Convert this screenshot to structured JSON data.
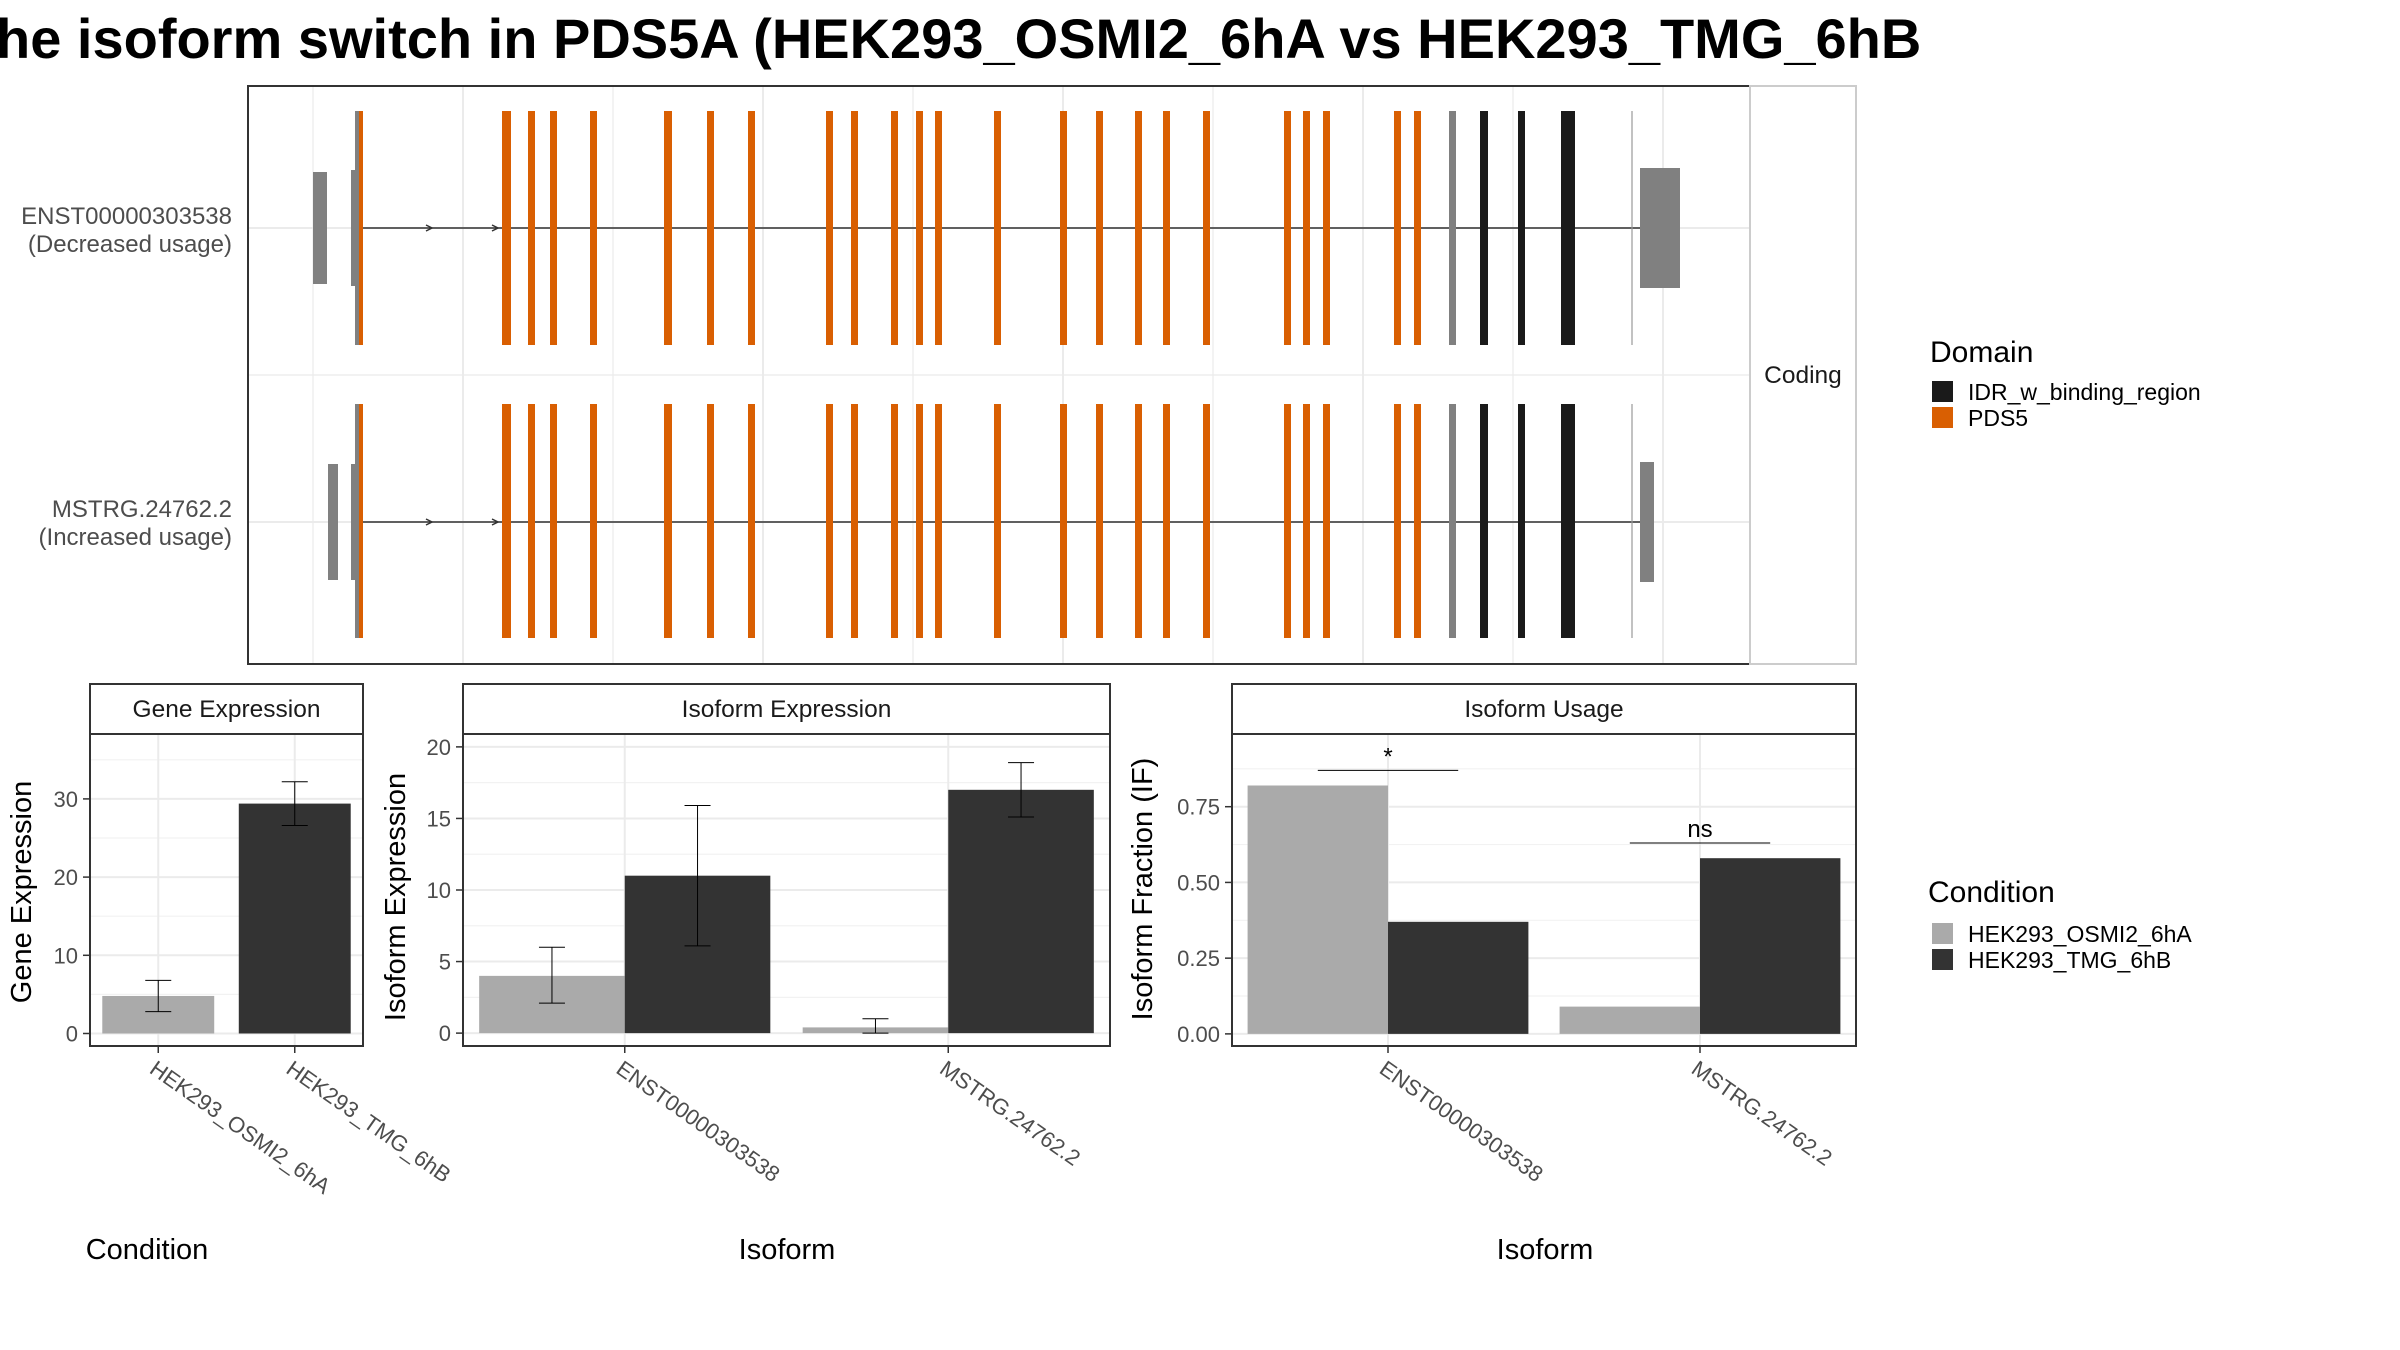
{
  "title": "he isoform switch in PDS5A (HEK293_OSMI2_6hA vs HEK293_TMG_6hB",
  "colors": {
    "condition_a": "#aaaaaa",
    "condition_b": "#333333",
    "pds5": "#d95f02",
    "idr": "#1a1a1a",
    "utr": "#808080"
  },
  "transcript_panel": {
    "strip_label": "Coding",
    "transcripts": [
      {
        "id": "ENST00000303538",
        "label": "(Decreased usage)"
      },
      {
        "id": "MSTRG.24762.2",
        "label": "(Increased usage)"
      }
    ]
  },
  "domain_legend": {
    "title": "Domain",
    "items": [
      {
        "name": "IDR_w_binding_region",
        "color": "#1a1a1a"
      },
      {
        "name": "PDS5",
        "color": "#d95f02"
      }
    ]
  },
  "condition_legend": {
    "title": "Condition",
    "items": [
      {
        "name": "HEK293_OSMI2_6hA",
        "color": "#aaaaaa"
      },
      {
        "name": "HEK293_TMG_6hB",
        "color": "#333333"
      }
    ]
  },
  "chart_data": [
    {
      "type": "bar",
      "strip_title": "Gene Expression",
      "xlabel": "Condition",
      "ylabel": "Gene Expression",
      "categories": [
        "HEK293_OSMI2_6hA",
        "HEK293_TMG_6hB"
      ],
      "values": [
        4.8,
        29.4
      ],
      "error_low": [
        2.8,
        26.6
      ],
      "error_high": [
        6.8,
        32.2
      ],
      "yticks": [
        0,
        10,
        20,
        30
      ],
      "ylim": [
        -1.6,
        38.3
      ]
    },
    {
      "type": "bar",
      "strip_title": "Isoform Expression",
      "xlabel": "Isoform",
      "ylabel": "Isoform Expression",
      "categories": [
        "ENST00000303538",
        "MSTRG.24762.2"
      ],
      "series": [
        {
          "name": "HEK293_OSMI2_6hA",
          "values": [
            4.0,
            0.4
          ],
          "error_low": [
            2.1,
            0.0
          ],
          "error_high": [
            6.0,
            1.0
          ]
        },
        {
          "name": "HEK293_TMG_6hB",
          "values": [
            11.0,
            17.0
          ],
          "error_low": [
            6.1,
            15.1
          ],
          "error_high": [
            15.9,
            18.9
          ]
        }
      ],
      "yticks": [
        0,
        5,
        10,
        15,
        20
      ],
      "ylim": [
        -0.9,
        20.9
      ]
    },
    {
      "type": "bar",
      "strip_title": "Isoform Usage",
      "xlabel": "Isoform",
      "ylabel": "Isoform Fraction (IF)",
      "categories": [
        "ENST00000303538",
        "MSTRG.24762.2"
      ],
      "series": [
        {
          "name": "HEK293_OSMI2_6hA",
          "values": [
            0.82,
            0.09
          ]
        },
        {
          "name": "HEK293_TMG_6hB",
          "values": [
            0.37,
            0.58
          ]
        }
      ],
      "significance": [
        "*",
        "ns"
      ],
      "sig_y": [
        0.87,
        0.63
      ],
      "yticks": [
        0.0,
        0.25,
        0.5,
        0.75
      ],
      "ytick_labels": [
        "0.00",
        "0.25",
        "0.50",
        "0.75"
      ],
      "ylim": [
        -0.04,
        0.99
      ]
    }
  ]
}
